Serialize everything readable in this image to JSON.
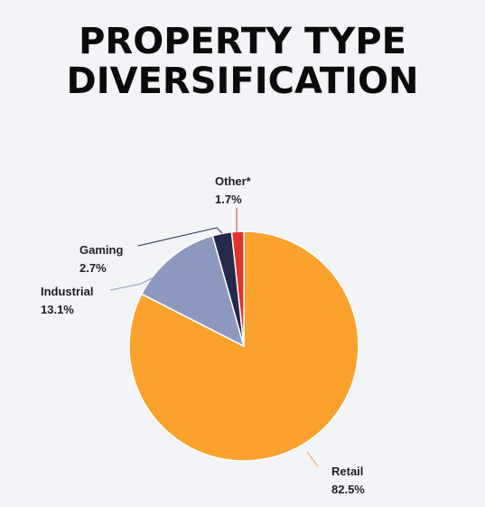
{
  "title": {
    "line1": "PROPERTY TYPE",
    "line2": "DIVERSIFICATION"
  },
  "chart_data": {
    "type": "pie",
    "title": "PROPERTY TYPE DIVERSIFICATION",
    "slices": [
      {
        "label": "Retail",
        "value": 82.5,
        "value_label": "82.5%",
        "color": "#fba12e"
      },
      {
        "label": "Industrial",
        "value": 13.1,
        "value_label": "13.1%",
        "color": "#8e98bf"
      },
      {
        "label": "Gaming",
        "value": 2.7,
        "value_label": "2.7%",
        "color": "#262a4a"
      },
      {
        "label": "Other*",
        "value": 1.7,
        "value_label": "1.7%",
        "color": "#e3322b"
      }
    ],
    "start": "12 o'clock",
    "direction": "clockwise",
    "legend": "none"
  }
}
